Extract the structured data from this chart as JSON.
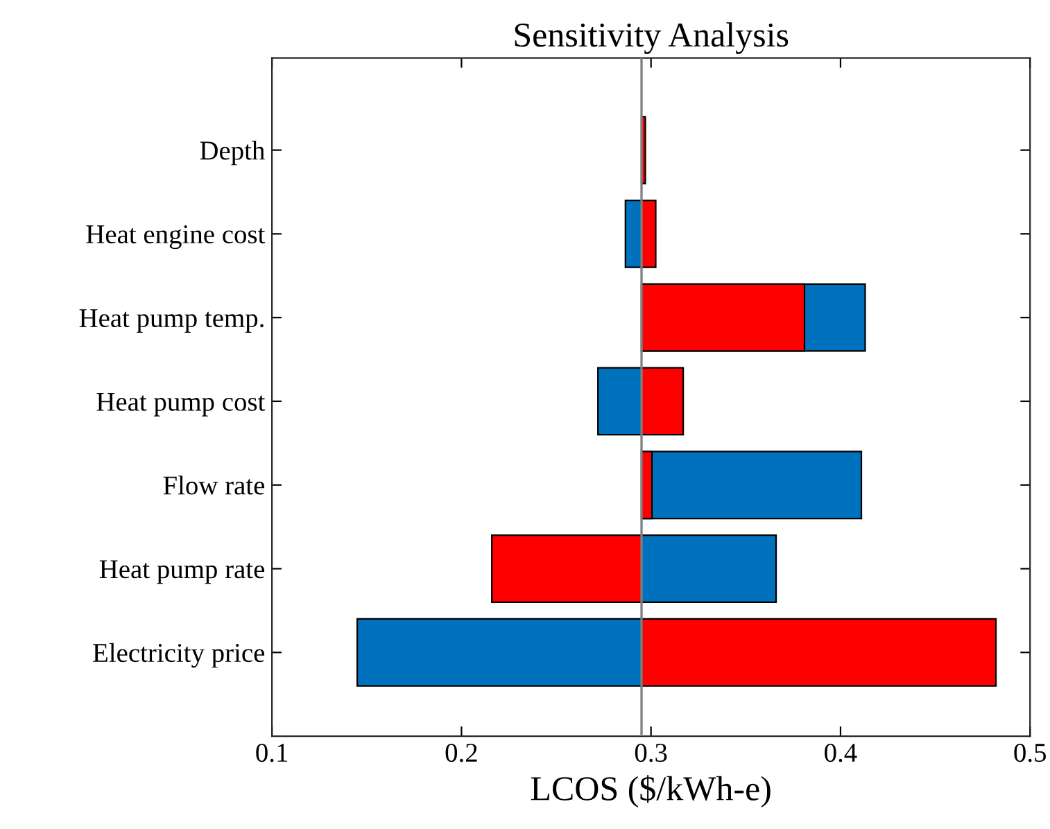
{
  "chart_data": {
    "type": "bar",
    "orientation": "horizontal",
    "title": "Sensitivity Analysis",
    "xlabel": "LCOS ($/kWh-e)",
    "categories": [
      "Depth",
      "Heat engine cost",
      "Heat pump temp.",
      "Heat pump cost",
      "Flow rate",
      "Heat pump rate",
      "Electricity price"
    ],
    "series": [
      {
        "color": "#0072bd",
        "base": [
          null,
          0.295,
          0.295,
          0.295,
          0.295,
          0.295,
          0.295
        ],
        "values": [
          null,
          -0.0085,
          0.118,
          -0.023,
          0.116,
          0.071,
          -0.15
        ]
      },
      {
        "color": "#ff0000",
        "base": [
          0.295,
          0.295,
          0.295,
          0.295,
          0.295,
          0.295,
          0.295
        ],
        "values": [
          0.002,
          0.0075,
          0.086,
          0.022,
          0.0055,
          -0.079,
          0.187
        ]
      }
    ],
    "xlim": [
      0.1,
      0.5
    ],
    "xticks": [
      0.1,
      0.2,
      0.3,
      0.4,
      0.5
    ],
    "ref_lines": [
      {
        "axis": "x",
        "value": 0.295,
        "color": "#808080"
      }
    ],
    "grid": false
  }
}
